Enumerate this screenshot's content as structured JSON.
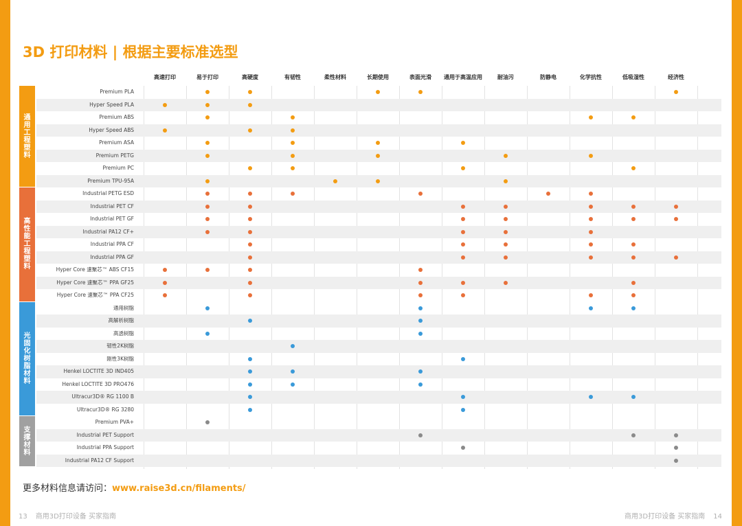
{
  "title": "3D 打印材料 | 根据主要标准选型",
  "criteria": [
    "高速打印",
    "易于打印",
    "高硬度",
    "有韧性",
    "柔性材料",
    "长期使用",
    "表面光滑",
    "通用于高温应用",
    "耐油污",
    "防静电",
    "化学抗性",
    "低吸湿性",
    "经济性"
  ],
  "colors": {
    "orange": "#f39c12",
    "red_orange": "#e8703a",
    "blue": "#3a9ad9",
    "gray": "#a0a0a0"
  },
  "groups": [
    {
      "name": "通用工程塑料",
      "color": "#f39c12",
      "dot_color": "#f39c12",
      "rows": [
        {
          "name": "Premium PLA",
          "marks": [
            1,
            2,
            5,
            6,
            12
          ]
        },
        {
          "name": "Hyper Speed PLA",
          "marks": [
            0,
            1,
            2
          ]
        },
        {
          "name": "Premium ABS",
          "marks": [
            1,
            3,
            10,
            11
          ]
        },
        {
          "name": "Hyper Speed ABS",
          "marks": [
            0,
            2,
            3
          ]
        },
        {
          "name": "Premium ASA",
          "marks": [
            1,
            3,
            5,
            7
          ]
        },
        {
          "name": "Premium PETG",
          "marks": [
            1,
            3,
            5,
            8,
            10
          ]
        },
        {
          "name": "Premium PC",
          "marks": [
            2,
            3,
            7,
            11
          ]
        },
        {
          "name": "Premium TPU-95A",
          "marks": [
            1,
            4,
            5,
            8
          ]
        }
      ]
    },
    {
      "name": "高性能工程塑料",
      "color": "#e8703a",
      "dot_color": "#e8703a",
      "rows": [
        {
          "name": "Industrial PETG ESD",
          "marks": [
            1,
            2,
            3,
            6,
            9,
            10
          ]
        },
        {
          "name": "Industrial PET CF",
          "marks": [
            1,
            2,
            7,
            8,
            10,
            11,
            12
          ]
        },
        {
          "name": "Industrial PET GF",
          "marks": [
            1,
            2,
            7,
            8,
            10,
            11,
            12
          ]
        },
        {
          "name": "Industrial PA12 CF+",
          "marks": [
            1,
            2,
            7,
            8,
            10
          ]
        },
        {
          "name": "Industrial PPA CF",
          "marks": [
            2,
            7,
            8,
            10,
            11
          ]
        },
        {
          "name": "Industrial PPA GF",
          "marks": [
            2,
            7,
            8,
            10,
            11,
            12
          ]
        },
        {
          "name": "Hyper Core 速聚芯™ ABS CF15",
          "marks": [
            0,
            1,
            2,
            6
          ]
        },
        {
          "name": "Hyper Core 速聚芯™ PPA GF25",
          "marks": [
            0,
            2,
            6,
            7,
            8,
            11
          ]
        },
        {
          "name": "Hyper Core 速聚芯™ PPA CF25",
          "marks": [
            0,
            2,
            6,
            7,
            10,
            11
          ]
        }
      ]
    },
    {
      "name": "光固化树脂材料",
      "color": "#3a9ad9",
      "dot_color": "#3a9ad9",
      "rows": [
        {
          "name": "通用树脂",
          "marks": [
            1,
            6,
            10,
            11
          ]
        },
        {
          "name": "高解析树脂",
          "marks": [
            2,
            6
          ]
        },
        {
          "name": "高透树脂",
          "marks": [
            1,
            6
          ]
        },
        {
          "name": "韧性2K树脂",
          "marks": [
            3
          ]
        },
        {
          "name": "刚性3K树脂",
          "marks": [
            2,
            7
          ]
        },
        {
          "name": "Henkel LOCTITE 3D IND405",
          "marks": [
            2,
            3,
            6
          ]
        },
        {
          "name": "Henkel LOCTITE 3D PRO476",
          "marks": [
            2,
            3,
            6
          ]
        },
        {
          "name": "Ultracur3D® RG 1100 B",
          "marks": [
            2,
            7,
            10,
            11
          ]
        },
        {
          "name": "Ultracur3D® RG 3280",
          "marks": [
            2,
            7
          ]
        }
      ]
    },
    {
      "name": "支撑材料",
      "color": "#a0a0a0",
      "dot_color": "#8a8a8a",
      "rows": [
        {
          "name": "Premium PVA+",
          "marks": [
            1
          ]
        },
        {
          "name": "Industrial PET Support",
          "marks": [
            6,
            11,
            12
          ]
        },
        {
          "name": "Industrial PPA Support",
          "marks": [
            7,
            12
          ]
        },
        {
          "name": "Industrial PA12 CF Support",
          "marks": [
            12
          ]
        }
      ]
    }
  ],
  "footer": {
    "text": "更多材料信息请访问：",
    "url": "www.raise3d.cn/filaments/"
  },
  "page_left": {
    "num": "13",
    "text": "商用3D打印设备 买家指南"
  },
  "page_right": {
    "num": "14",
    "text": "商用3D打印设备 买家指南"
  }
}
